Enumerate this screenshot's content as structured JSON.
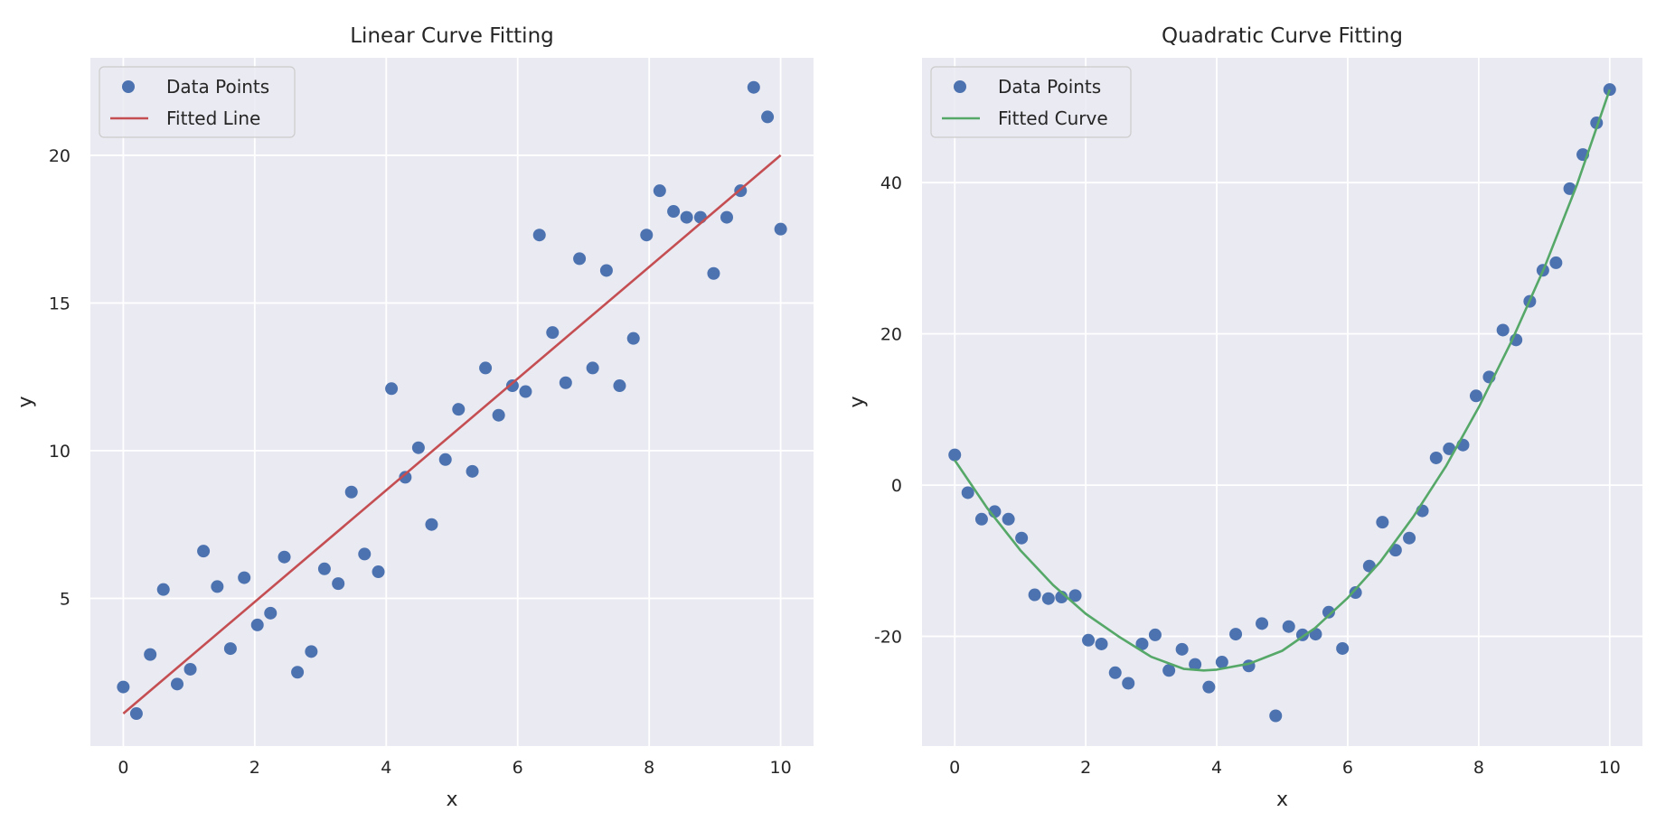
{
  "chart_data": [
    {
      "type": "scatter",
      "title": "Linear Curve Fitting",
      "xlabel": "x",
      "ylabel": "y",
      "xlim": [
        -0.5,
        10.5
      ],
      "ylim": [
        0,
        23.3
      ],
      "xticks": [
        0,
        2,
        4,
        6,
        8,
        10
      ],
      "yticks": [
        5,
        10,
        15,
        20
      ],
      "grid": true,
      "legend_position": "top-left",
      "series": [
        {
          "name": "Data Points",
          "kind": "scatter",
          "color": "#4c72b0",
          "x": [
            0,
            0.2,
            0.41,
            0.61,
            0.82,
            1.02,
            1.22,
            1.43,
            1.63,
            1.84,
            2.04,
            2.24,
            2.45,
            2.65,
            2.86,
            3.06,
            3.27,
            3.47,
            3.67,
            3.88,
            4.08,
            4.29,
            4.49,
            4.69,
            4.9,
            5.1,
            5.31,
            5.51,
            5.71,
            5.92,
            6.12,
            6.33,
            6.53,
            6.73,
            6.94,
            7.14,
            7.35,
            7.55,
            7.76,
            7.96,
            8.16,
            8.37,
            8.57,
            8.78,
            8.98,
            9.18,
            9.39,
            9.59,
            9.8,
            10
          ],
          "y": [
            2.0,
            1.1,
            3.1,
            5.3,
            2.1,
            2.6,
            6.6,
            5.4,
            3.3,
            5.7,
            4.1,
            4.5,
            6.4,
            2.5,
            3.2,
            6.0,
            5.5,
            8.6,
            6.5,
            5.9,
            12.1,
            9.1,
            10.1,
            7.5,
            9.7,
            11.4,
            9.3,
            12.8,
            11.2,
            12.2,
            12.0,
            17.3,
            14.0,
            12.3,
            16.5,
            12.8,
            16.1,
            12.2,
            13.8,
            17.3,
            18.8,
            18.1,
            17.9,
            17.9,
            16.0,
            17.9,
            18.8,
            22.3,
            21.3,
            17.5
          ]
        },
        {
          "name": "Fitted Line",
          "kind": "line",
          "color": "#c44e52",
          "x": [
            0,
            10
          ],
          "y": [
            1.1,
            20.0
          ]
        }
      ]
    },
    {
      "type": "scatter",
      "title": "Quadratic Curve Fitting",
      "xlabel": "x",
      "ylabel": "y",
      "xlim": [
        -0.5,
        10.5
      ],
      "ylim": [
        -34.5,
        56.5
      ],
      "xticks": [
        0,
        2,
        4,
        6,
        8,
        10
      ],
      "yticks": [
        -20,
        0,
        20,
        40
      ],
      "grid": true,
      "legend_position": "top-left",
      "series": [
        {
          "name": "Data Points",
          "kind": "scatter",
          "color": "#4c72b0",
          "x": [
            0,
            0.2,
            0.41,
            0.61,
            0.82,
            1.02,
            1.22,
            1.43,
            1.63,
            1.84,
            2.04,
            2.24,
            2.45,
            2.65,
            2.86,
            3.06,
            3.27,
            3.47,
            3.67,
            3.88,
            4.08,
            4.29,
            4.49,
            4.69,
            4.9,
            5.1,
            5.31,
            5.51,
            5.71,
            5.92,
            6.12,
            6.33,
            6.53,
            6.73,
            6.94,
            7.14,
            7.35,
            7.55,
            7.76,
            7.96,
            8.16,
            8.37,
            8.57,
            8.78,
            8.98,
            9.18,
            9.39,
            9.59,
            9.8,
            10
          ],
          "y": [
            4.0,
            -1.0,
            -4.5,
            -3.5,
            -4.5,
            -7.0,
            -14.5,
            -15.0,
            -14.8,
            -14.6,
            -20.5,
            -21.0,
            -24.8,
            -26.2,
            -21.0,
            -19.8,
            -24.5,
            -21.7,
            -23.7,
            -26.7,
            -23.4,
            -19.7,
            -23.9,
            -18.3,
            -30.5,
            -18.7,
            -19.8,
            -19.7,
            -16.8,
            -21.6,
            -14.2,
            -10.7,
            -4.9,
            -8.6,
            -7.0,
            -3.4,
            3.6,
            4.8,
            5.3,
            11.8,
            14.3,
            20.5,
            19.2,
            24.3,
            28.4,
            29.4,
            39.2,
            43.7,
            47.9,
            52.3
          ]
        },
        {
          "name": "Fitted Curve",
          "kind": "curve",
          "color": "#55a868",
          "x": [
            0,
            0.5,
            1,
            1.5,
            2,
            2.5,
            3,
            3.5,
            3.8,
            4,
            4.5,
            5,
            5.5,
            6,
            6.5,
            7,
            7.5,
            8,
            8.5,
            9,
            9.5,
            10
          ],
          "y": [
            3.3,
            -3.1,
            -8.6,
            -13.2,
            -17.0,
            -20.0,
            -22.7,
            -24.3,
            -24.5,
            -24.4,
            -23.6,
            -21.9,
            -18.9,
            -14.9,
            -10.1,
            -4.2,
            2.5,
            10.3,
            19.0,
            28.7,
            39.7,
            52.3
          ]
        }
      ]
    }
  ]
}
